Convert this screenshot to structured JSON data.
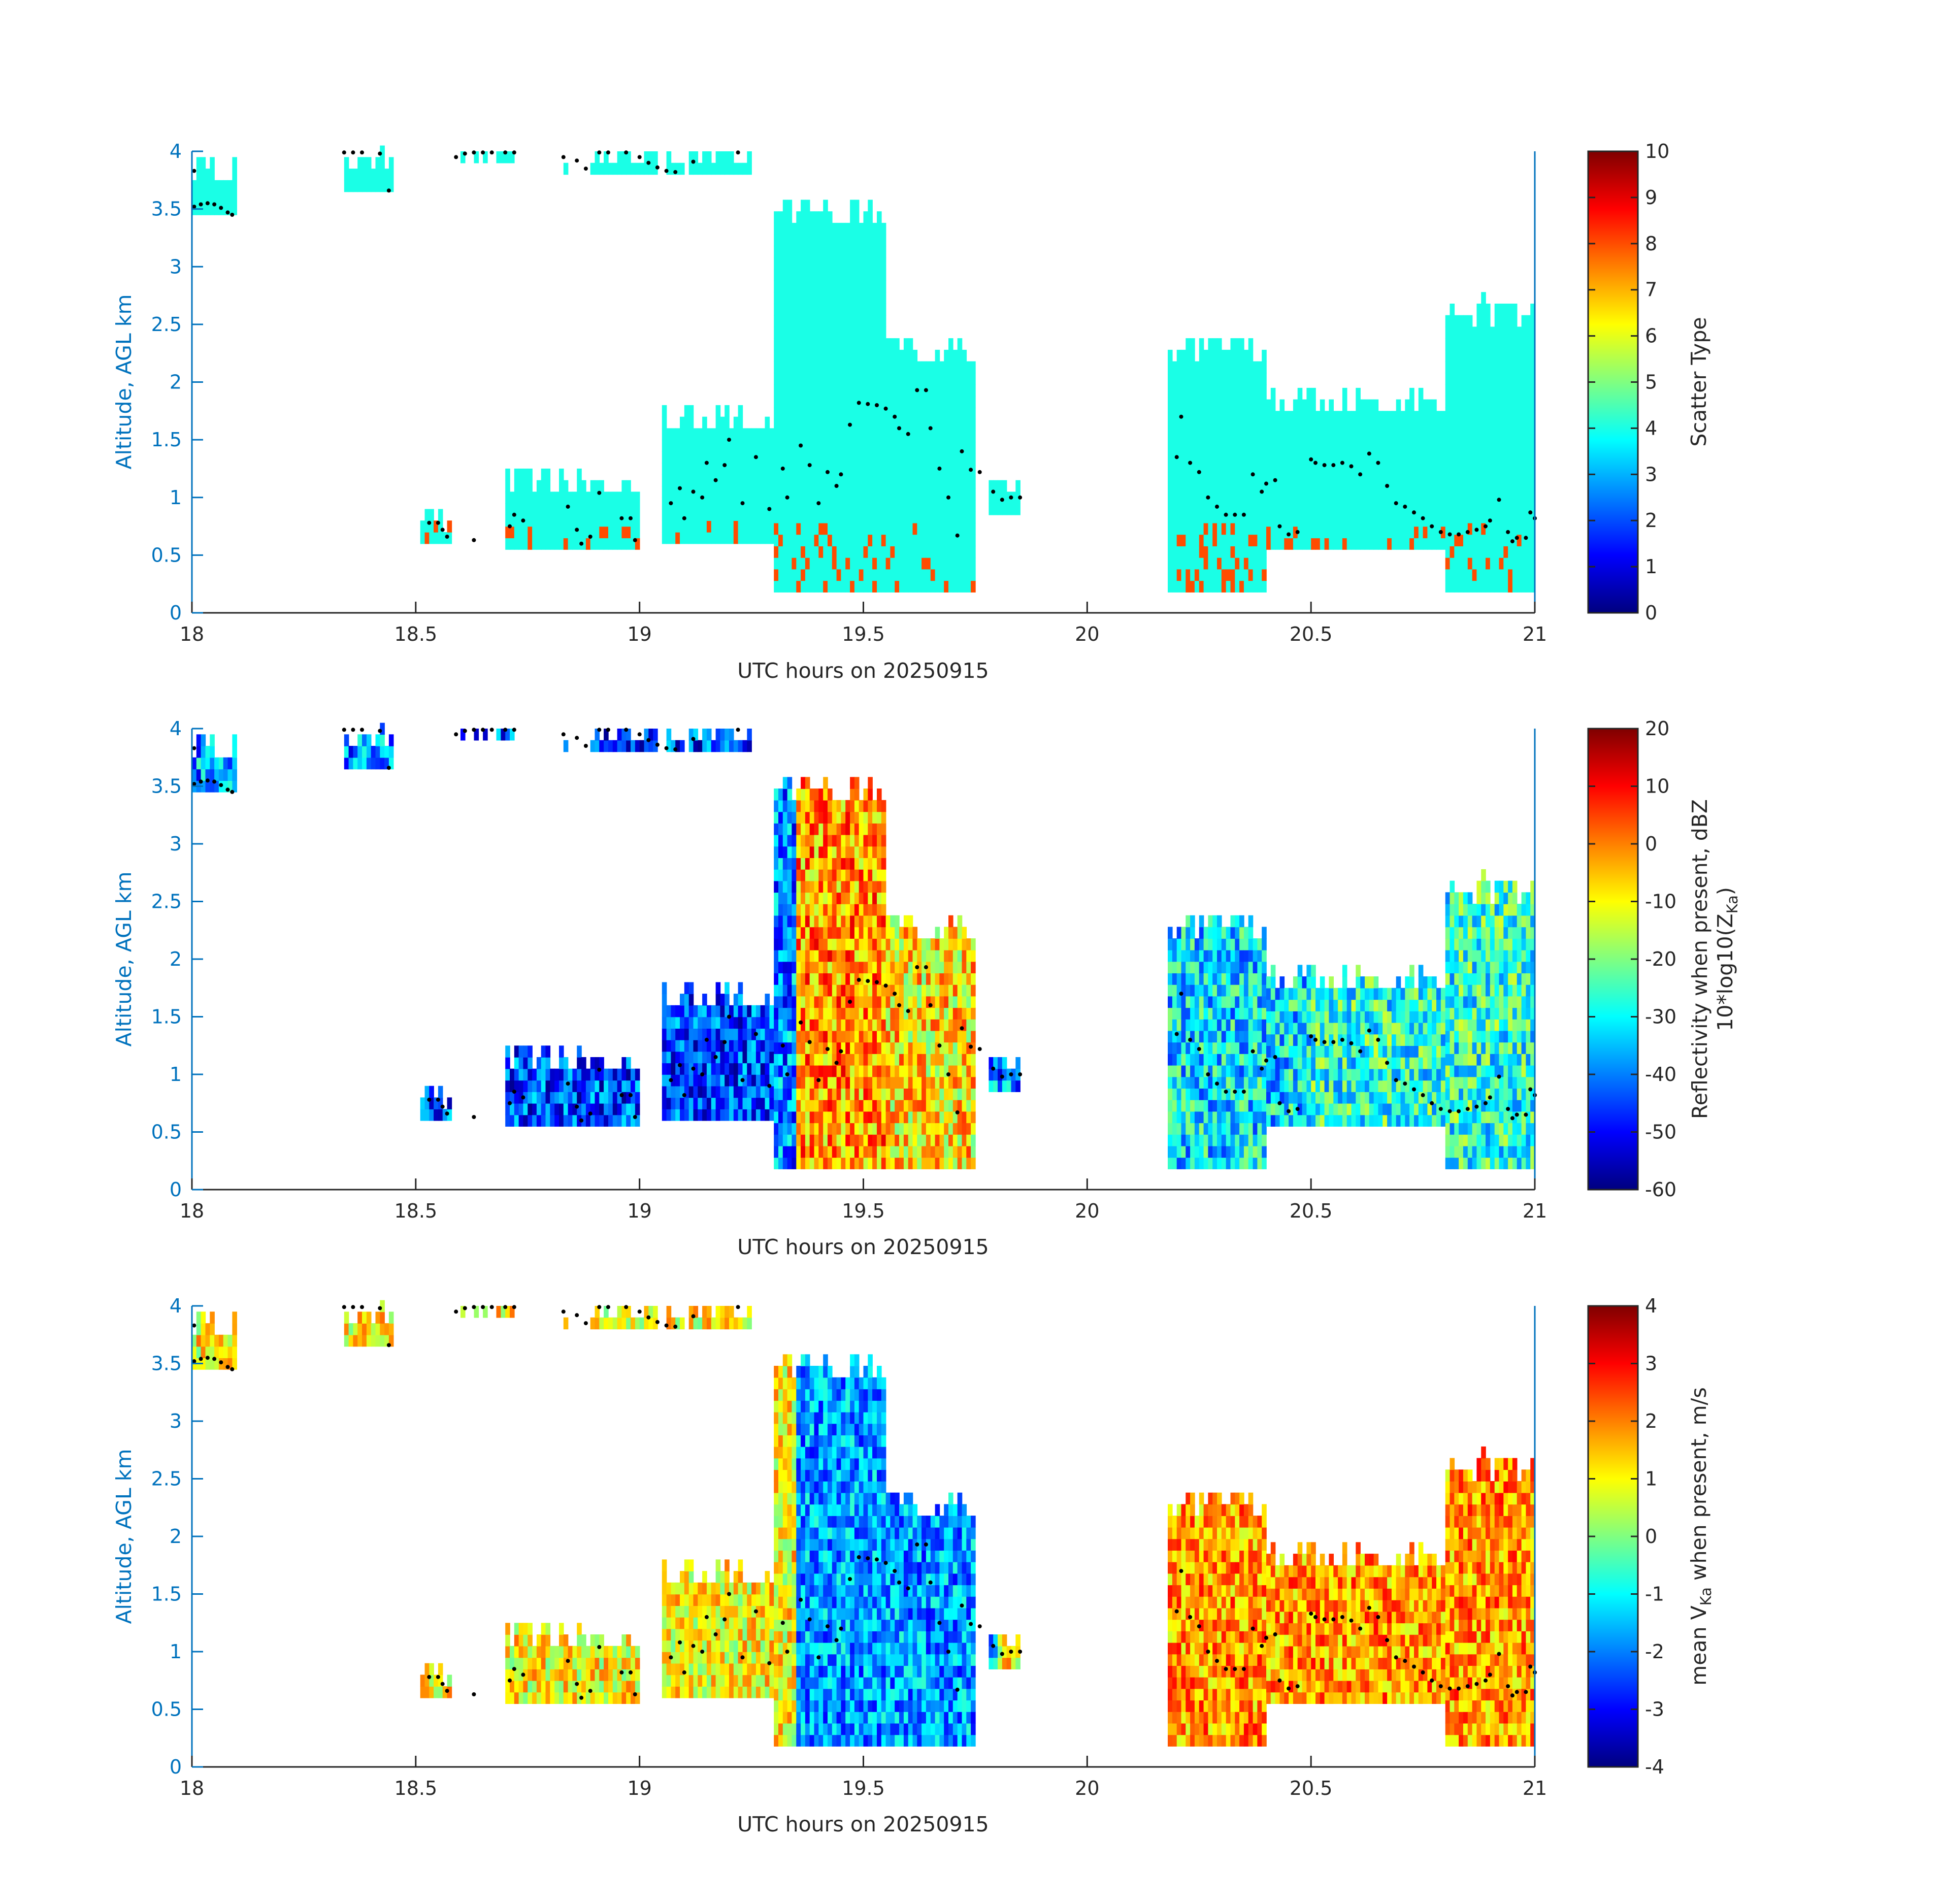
{
  "chart_data": [
    {
      "type": "heatmap",
      "xlabel": "UTC hours on 20250915",
      "ylabel": "Altitude, AGL km",
      "xlim": [
        18,
        21
      ],
      "ylim": [
        0,
        4
      ],
      "xticks": [
        "18",
        "18.5",
        "19",
        "19.5",
        "20",
        "20.5",
        "21"
      ],
      "yticks": [
        "0",
        "0.5",
        "1",
        "1.5",
        "2",
        "2.5",
        "3",
        "3.5",
        "4"
      ],
      "colormap": "jet",
      "colorbar": {
        "label": "Scatter Type",
        "range": [
          0,
          10
        ],
        "ticks": [
          "0",
          "1",
          "2",
          "3",
          "4",
          "5",
          "6",
          "7",
          "8",
          "9",
          "10"
        ]
      },
      "dominant_value": 4,
      "secondary_value": 8,
      "column_extent": [
        {
          "t0": 18.0,
          "t1": 18.1,
          "base": 3.45,
          "top": 3.9
        },
        {
          "t0": 18.34,
          "t1": 18.45,
          "base": 3.65,
          "top": 4.0
        },
        {
          "t0": 18.58,
          "t1": 18.73,
          "base": 3.9,
          "top": 4.0
        },
        {
          "t0": 18.82,
          "t1": 19.25,
          "base": 3.8,
          "top": 4.0
        },
        {
          "t0": 18.51,
          "t1": 18.58,
          "base": 0.6,
          "top": 0.9
        },
        {
          "t0": 18.7,
          "t1": 19.0,
          "base": 0.55,
          "top": 1.2
        },
        {
          "t0": 19.05,
          "t1": 19.3,
          "base": 0.6,
          "top": 1.75
        },
        {
          "t0": 19.3,
          "t1": 19.55,
          "base": 0.18,
          "top": 3.55
        },
        {
          "t0": 19.55,
          "t1": 19.75,
          "base": 0.18,
          "top": 2.35
        },
        {
          "t0": 19.78,
          "t1": 19.85,
          "base": 0.85,
          "top": 1.2
        },
        {
          "t0": 20.18,
          "t1": 20.4,
          "base": 0.18,
          "top": 2.35
        },
        {
          "t0": 20.4,
          "t1": 20.8,
          "base": 0.55,
          "top": 1.9
        },
        {
          "t0": 20.8,
          "t1": 21.0,
          "base": 0.18,
          "top": 2.7
        }
      ]
    },
    {
      "type": "heatmap",
      "xlabel": "UTC hours on 20250915",
      "ylabel": "Altitude, AGL km",
      "xlim": [
        18,
        21
      ],
      "ylim": [
        0,
        4
      ],
      "xticks": [
        "18",
        "18.5",
        "19",
        "19.5",
        "20",
        "20.5",
        "21"
      ],
      "yticks": [
        "0",
        "0.5",
        "1",
        "1.5",
        "2",
        "2.5",
        "3",
        "3.5",
        "4"
      ],
      "colormap": "jet",
      "colorbar": {
        "label_line1": "Reflectivity when present, dBZ",
        "label_line2": "10*log10(Z",
        "label_sub": "Ka",
        "label_end": ")",
        "range": [
          -60,
          20
        ],
        "ticks": [
          "-60",
          "-50",
          "-40",
          "-30",
          "-20",
          "-10",
          "0",
          "10",
          "20"
        ]
      },
      "cells_by_region_dBZ": [
        {
          "t0": 18.0,
          "t1": 18.1,
          "value": -38
        },
        {
          "t0": 18.5,
          "t1": 19.3,
          "value": -45
        },
        {
          "t0": 19.35,
          "t1": 19.55,
          "value": -2
        },
        {
          "t0": 19.55,
          "t1": 19.78,
          "value": -8
        },
        {
          "t0": 20.18,
          "t1": 20.5,
          "value": -32
        },
        {
          "t0": 20.5,
          "t1": 21.0,
          "value": -27
        }
      ]
    },
    {
      "type": "heatmap",
      "xlabel": "UTC hours on 20250915",
      "ylabel": "Altitude, AGL km",
      "xlim": [
        18,
        21
      ],
      "ylim": [
        0,
        4
      ],
      "xticks": [
        "18",
        "18.5",
        "19",
        "19.5",
        "20",
        "20.5",
        "21"
      ],
      "yticks": [
        "0",
        "0.5",
        "1",
        "1.5",
        "2",
        "2.5",
        "3",
        "3.5",
        "4"
      ],
      "colormap": "jet",
      "colorbar": {
        "label_pre": "mean V",
        "label_sub": "Ka",
        "label_post": " when present, m/s",
        "range": [
          -4,
          4
        ],
        "ticks": [
          "-4",
          "-3",
          "-2",
          "-1",
          "0",
          "1",
          "2",
          "3",
          "4"
        ]
      },
      "cells_by_region_ms": [
        {
          "t0": 18.5,
          "t1": 19.3,
          "value": 1.0
        },
        {
          "t0": 19.35,
          "t1": 19.8,
          "value": -1.8
        },
        {
          "t0": 20.18,
          "t1": 21.0,
          "value": 1.8
        }
      ]
    }
  ],
  "dot_series": [
    {
      "x": 18.005,
      "y": 3.83
    },
    {
      "x": 18.005,
      "y": 3.52
    },
    {
      "x": 18.02,
      "y": 3.54
    },
    {
      "x": 18.035,
      "y": 3.55
    },
    {
      "x": 18.05,
      "y": 3.54
    },
    {
      "x": 18.065,
      "y": 3.51
    },
    {
      "x": 18.08,
      "y": 3.47
    },
    {
      "x": 18.09,
      "y": 3.45
    },
    {
      "x": 18.34,
      "y": 3.99
    },
    {
      "x": 18.36,
      "y": 3.99
    },
    {
      "x": 18.38,
      "y": 3.99
    },
    {
      "x": 18.42,
      "y": 3.98
    },
    {
      "x": 18.44,
      "y": 3.66
    },
    {
      "x": 18.59,
      "y": 3.95
    },
    {
      "x": 18.61,
      "y": 3.98
    },
    {
      "x": 18.63,
      "y": 3.99
    },
    {
      "x": 18.65,
      "y": 3.99
    },
    {
      "x": 18.67,
      "y": 3.99
    },
    {
      "x": 18.7,
      "y": 3.99
    },
    {
      "x": 18.72,
      "y": 3.99
    },
    {
      "x": 18.83,
      "y": 3.95
    },
    {
      "x": 18.86,
      "y": 3.92
    },
    {
      "x": 18.88,
      "y": 3.85
    },
    {
      "x": 18.91,
      "y": 3.99
    },
    {
      "x": 18.93,
      "y": 3.99
    },
    {
      "x": 18.97,
      "y": 3.99
    },
    {
      "x": 19.0,
      "y": 3.95
    },
    {
      "x": 19.02,
      "y": 3.9
    },
    {
      "x": 19.04,
      "y": 3.86
    },
    {
      "x": 19.06,
      "y": 3.83
    },
    {
      "x": 19.08,
      "y": 3.82
    },
    {
      "x": 19.12,
      "y": 3.91
    },
    {
      "x": 19.22,
      "y": 3.99
    },
    {
      "x": 18.53,
      "y": 0.78
    },
    {
      "x": 18.55,
      "y": 0.78
    },
    {
      "x": 18.56,
      "y": 0.72
    },
    {
      "x": 18.57,
      "y": 0.66
    },
    {
      "x": 18.63,
      "y": 0.63
    },
    {
      "x": 18.71,
      "y": 0.75
    },
    {
      "x": 18.72,
      "y": 0.85
    },
    {
      "x": 18.74,
      "y": 0.8
    },
    {
      "x": 18.84,
      "y": 0.92
    },
    {
      "x": 18.86,
      "y": 0.72
    },
    {
      "x": 18.87,
      "y": 0.6
    },
    {
      "x": 18.89,
      "y": 0.66
    },
    {
      "x": 18.91,
      "y": 1.04
    },
    {
      "x": 18.96,
      "y": 0.82
    },
    {
      "x": 18.98,
      "y": 0.82
    },
    {
      "x": 18.99,
      "y": 0.63
    },
    {
      "x": 19.07,
      "y": 0.95
    },
    {
      "x": 19.09,
      "y": 1.08
    },
    {
      "x": 19.1,
      "y": 0.82
    },
    {
      "x": 19.12,
      "y": 1.05
    },
    {
      "x": 19.14,
      "y": 1.0
    },
    {
      "x": 19.15,
      "y": 1.3
    },
    {
      "x": 19.17,
      "y": 1.15
    },
    {
      "x": 19.19,
      "y": 1.28
    },
    {
      "x": 19.2,
      "y": 1.5
    },
    {
      "x": 19.23,
      "y": 0.95
    },
    {
      "x": 19.26,
      "y": 1.35
    },
    {
      "x": 19.29,
      "y": 0.9
    },
    {
      "x": 19.32,
      "y": 1.25
    },
    {
      "x": 19.33,
      "y": 1.0
    },
    {
      "x": 19.36,
      "y": 1.45
    },
    {
      "x": 19.38,
      "y": 1.28
    },
    {
      "x": 19.4,
      "y": 0.95
    },
    {
      "x": 19.42,
      "y": 1.22
    },
    {
      "x": 19.44,
      "y": 1.1
    },
    {
      "x": 19.45,
      "y": 1.2
    },
    {
      "x": 19.47,
      "y": 1.63
    },
    {
      "x": 19.49,
      "y": 1.82
    },
    {
      "x": 19.51,
      "y": 1.81
    },
    {
      "x": 19.53,
      "y": 1.8
    },
    {
      "x": 19.55,
      "y": 1.77
    },
    {
      "x": 19.57,
      "y": 1.7
    },
    {
      "x": 19.58,
      "y": 1.6
    },
    {
      "x": 19.6,
      "y": 1.55
    },
    {
      "x": 19.62,
      "y": 1.93
    },
    {
      "x": 19.64,
      "y": 1.93
    },
    {
      "x": 19.65,
      "y": 1.6
    },
    {
      "x": 19.67,
      "y": 1.25
    },
    {
      "x": 19.69,
      "y": 1.0
    },
    {
      "x": 19.71,
      "y": 0.67
    },
    {
      "x": 19.72,
      "y": 1.4
    },
    {
      "x": 19.74,
      "y": 1.24
    },
    {
      "x": 19.76,
      "y": 1.22
    },
    {
      "x": 19.79,
      "y": 1.05
    },
    {
      "x": 19.81,
      "y": 0.98
    },
    {
      "x": 19.83,
      "y": 1.0
    },
    {
      "x": 19.85,
      "y": 1.0
    },
    {
      "x": 20.2,
      "y": 1.35
    },
    {
      "x": 20.21,
      "y": 1.7
    },
    {
      "x": 20.23,
      "y": 1.3
    },
    {
      "x": 20.25,
      "y": 1.22
    },
    {
      "x": 20.27,
      "y": 1.0
    },
    {
      "x": 20.29,
      "y": 0.92
    },
    {
      "x": 20.31,
      "y": 0.85
    },
    {
      "x": 20.33,
      "y": 0.85
    },
    {
      "x": 20.35,
      "y": 0.85
    },
    {
      "x": 20.37,
      "y": 1.2
    },
    {
      "x": 20.39,
      "y": 1.05
    },
    {
      "x": 20.4,
      "y": 1.12
    },
    {
      "x": 20.42,
      "y": 1.15
    },
    {
      "x": 20.43,
      "y": 0.75
    },
    {
      "x": 20.45,
      "y": 0.68
    },
    {
      "x": 20.47,
      "y": 0.7
    },
    {
      "x": 20.5,
      "y": 1.33
    },
    {
      "x": 20.51,
      "y": 1.3
    },
    {
      "x": 20.53,
      "y": 1.28
    },
    {
      "x": 20.55,
      "y": 1.28
    },
    {
      "x": 20.57,
      "y": 1.3
    },
    {
      "x": 20.59,
      "y": 1.27
    },
    {
      "x": 20.61,
      "y": 1.2
    },
    {
      "x": 20.63,
      "y": 1.38
    },
    {
      "x": 20.65,
      "y": 1.3
    },
    {
      "x": 20.67,
      "y": 1.1
    },
    {
      "x": 20.69,
      "y": 0.95
    },
    {
      "x": 20.71,
      "y": 0.92
    },
    {
      "x": 20.73,
      "y": 0.87
    },
    {
      "x": 20.75,
      "y": 0.82
    },
    {
      "x": 20.77,
      "y": 0.75
    },
    {
      "x": 20.79,
      "y": 0.7
    },
    {
      "x": 20.81,
      "y": 0.68
    },
    {
      "x": 20.83,
      "y": 0.68
    },
    {
      "x": 20.85,
      "y": 0.7
    },
    {
      "x": 20.87,
      "y": 0.72
    },
    {
      "x": 20.89,
      "y": 0.75
    },
    {
      "x": 20.9,
      "y": 0.8
    },
    {
      "x": 20.92,
      "y": 0.98
    },
    {
      "x": 20.94,
      "y": 0.7
    },
    {
      "x": 20.95,
      "y": 0.62
    },
    {
      "x": 20.96,
      "y": 0.65
    },
    {
      "x": 20.98,
      "y": 0.65
    },
    {
      "x": 20.99,
      "y": 0.87
    },
    {
      "x": 21.0,
      "y": 0.82
    }
  ]
}
